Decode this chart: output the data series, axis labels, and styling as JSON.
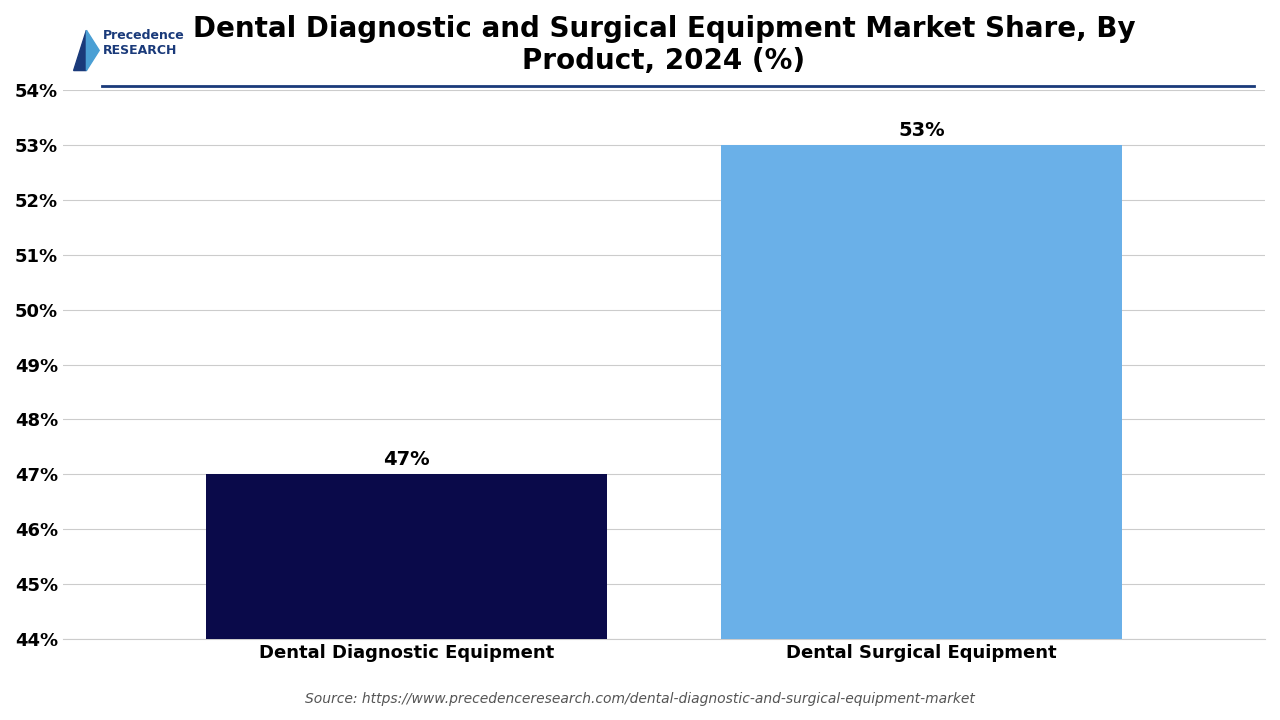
{
  "title": "Dental Diagnostic and Surgical Equipment Market Share, By\nProduct, 2024 (%)",
  "categories": [
    "Dental Diagnostic Equipment",
    "Dental Surgical Equipment"
  ],
  "values": [
    47,
    53
  ],
  "bar_colors": [
    "#0a0a4a",
    "#6ab0e8"
  ],
  "ylim": [
    44,
    54
  ],
  "yticks": [
    44,
    45,
    46,
    47,
    48,
    49,
    50,
    51,
    52,
    53,
    54
  ],
  "ytick_labels": [
    "44%",
    "45%",
    "46%",
    "47%",
    "48%",
    "49%",
    "50%",
    "51%",
    "52%",
    "53%",
    "54%"
  ],
  "value_labels": [
    "47%",
    "53%"
  ],
  "source_text": "Source: https://www.precedenceresearch.com/dental-diagnostic-and-surgical-equipment-market",
  "background_color": "#ffffff",
  "title_fontsize": 20,
  "tick_fontsize": 13,
  "label_fontsize": 13,
  "value_fontsize": 14,
  "bar_width": 0.35,
  "grid_color": "#cccccc",
  "title_color": "#000000",
  "tick_label_color": "#000000",
  "xlabel_color": "#000000"
}
